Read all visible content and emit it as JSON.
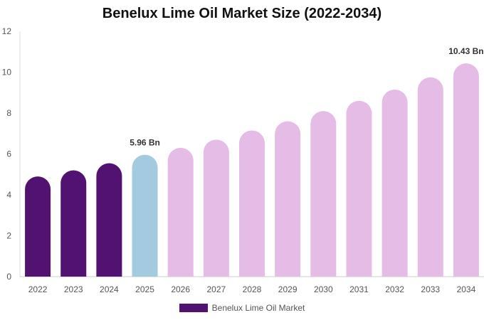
{
  "chart_data": {
    "type": "bar",
    "title": "Benelux Lime Oil Market Size (2022-2034)",
    "categories": [
      "2022",
      "2023",
      "2024",
      "2025",
      "2026",
      "2027",
      "2028",
      "2029",
      "2030",
      "2031",
      "2032",
      "2033",
      "2034"
    ],
    "series": [
      {
        "name": "Benelux Lime Oil Market",
        "values": [
          4.9,
          5.2,
          5.55,
          5.96,
          6.3,
          6.7,
          7.15,
          7.6,
          8.1,
          8.6,
          9.15,
          9.75,
          10.43
        ]
      }
    ],
    "bar_colors": [
      "#521271",
      "#521271",
      "#521271",
      "#a4cadf",
      "#e5bce6",
      "#e5bce6",
      "#e5bce6",
      "#e5bce6",
      "#e5bce6",
      "#e5bce6",
      "#e5bce6",
      "#e5bce6",
      "#e5bce6"
    ],
    "data_labels": [
      {
        "category": "2025",
        "text": "5.96 Bn"
      },
      {
        "category": "2034",
        "text": "10.43 Bn"
      }
    ],
    "ylim": [
      0,
      12
    ],
    "yticks": [
      0,
      2,
      4,
      6,
      8,
      10,
      12
    ],
    "xlabel": "",
    "ylabel": "",
    "legend_position": "bottom-center",
    "grid": false,
    "legend_color": "#521271"
  }
}
